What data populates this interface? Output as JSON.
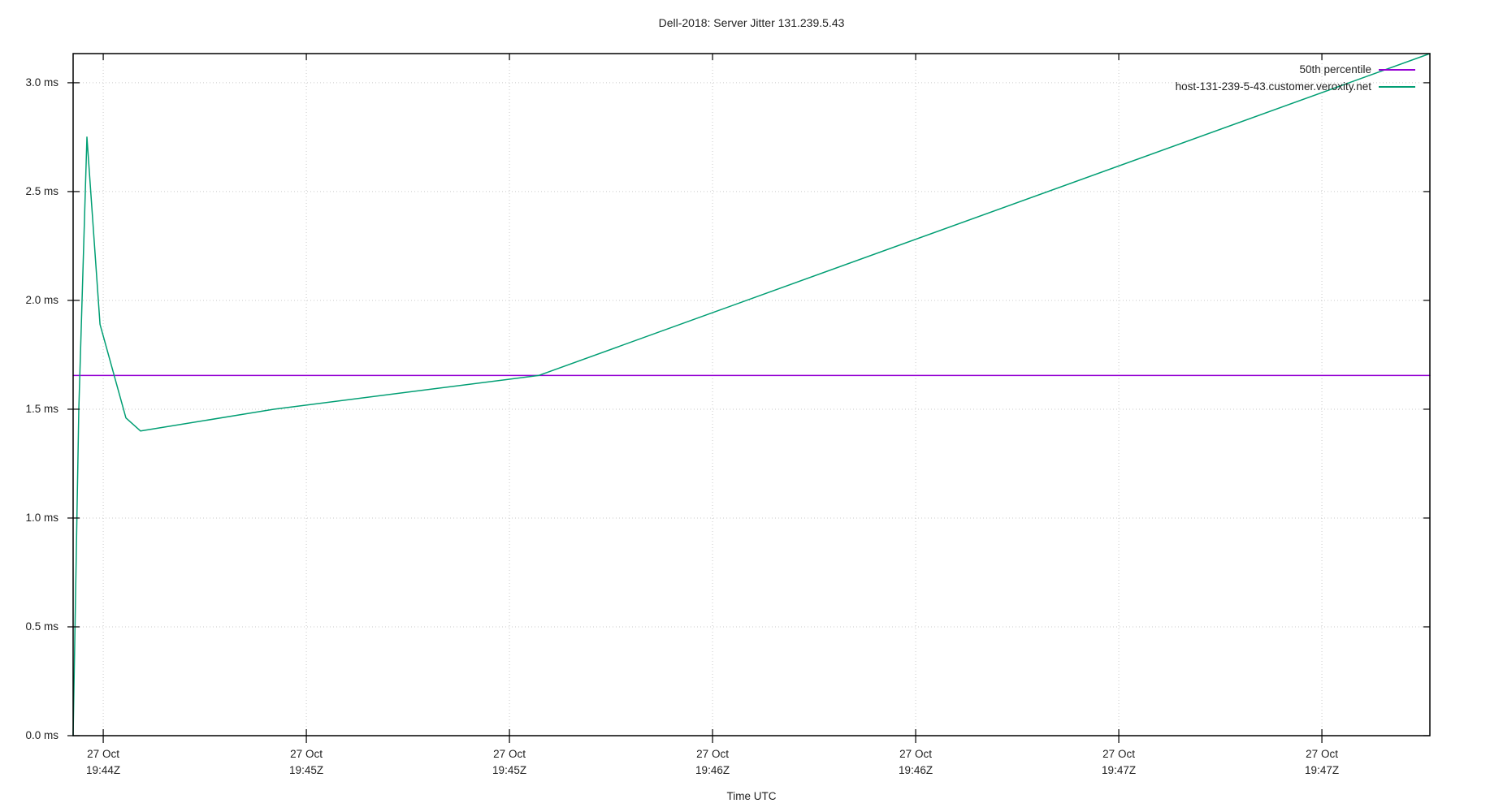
{
  "chart": {
    "background": "#ffffff",
    "text_color": "#1f1f1f",
    "grid_color": "#c9c9c9",
    "border_color": "#000000"
  },
  "chart_data": {
    "type": "line",
    "title": "Dell-2018: Server Jitter 131.239.5.43",
    "xlabel": "Time UTC",
    "ylabel": "",
    "unit": "ms",
    "ylim_ms": [
      0,
      3.134
    ],
    "grid": true,
    "legend_position": "top-right-inside",
    "y_ticks": [
      {
        "value": 0.0,
        "label": "0.0 ms"
      },
      {
        "value": 0.5,
        "label": "0.5 ms"
      },
      {
        "value": 1.0,
        "label": "1.0 ms"
      },
      {
        "value": 1.5,
        "label": "1.5 ms"
      },
      {
        "value": 2.0,
        "label": "2.0 ms"
      },
      {
        "value": 2.5,
        "label": "2.5 ms"
      },
      {
        "value": 3.0,
        "label": "3.0 ms"
      }
    ],
    "x_ticks": [
      {
        "x_frac": 0.0222,
        "line1": "27 Oct",
        "line2": "19:44Z"
      },
      {
        "x_frac": 0.1719,
        "line1": "27 Oct",
        "line2": "19:45Z"
      },
      {
        "x_frac": 0.3216,
        "line1": "27 Oct",
        "line2": "19:45Z"
      },
      {
        "x_frac": 0.4713,
        "line1": "27 Oct",
        "line2": "19:46Z"
      },
      {
        "x_frac": 0.621,
        "line1": "27 Oct",
        "line2": "19:46Z"
      },
      {
        "x_frac": 0.7707,
        "line1": "27 Oct",
        "line2": "19:47Z"
      },
      {
        "x_frac": 0.9204,
        "line1": "27 Oct",
        "line2": "19:47Z"
      }
    ],
    "series": [
      {
        "name": "50th percentile",
        "color": "#9400d3",
        "points": [
          [
            0.0,
            1.655
          ],
          [
            1.0,
            1.655
          ]
        ]
      },
      {
        "name": "host-131-239-5-43.customer.veroxity.net",
        "color": "#009e73",
        "points": [
          [
            0.0,
            0.0
          ],
          [
            0.0042,
            1.5
          ],
          [
            0.0102,
            2.75
          ],
          [
            0.0198,
            1.89
          ],
          [
            0.0389,
            1.46
          ],
          [
            0.0497,
            1.4
          ],
          [
            0.1479,
            1.5
          ],
          [
            0.3431,
            1.655
          ],
          [
            1.0,
            3.134
          ]
        ]
      }
    ]
  }
}
